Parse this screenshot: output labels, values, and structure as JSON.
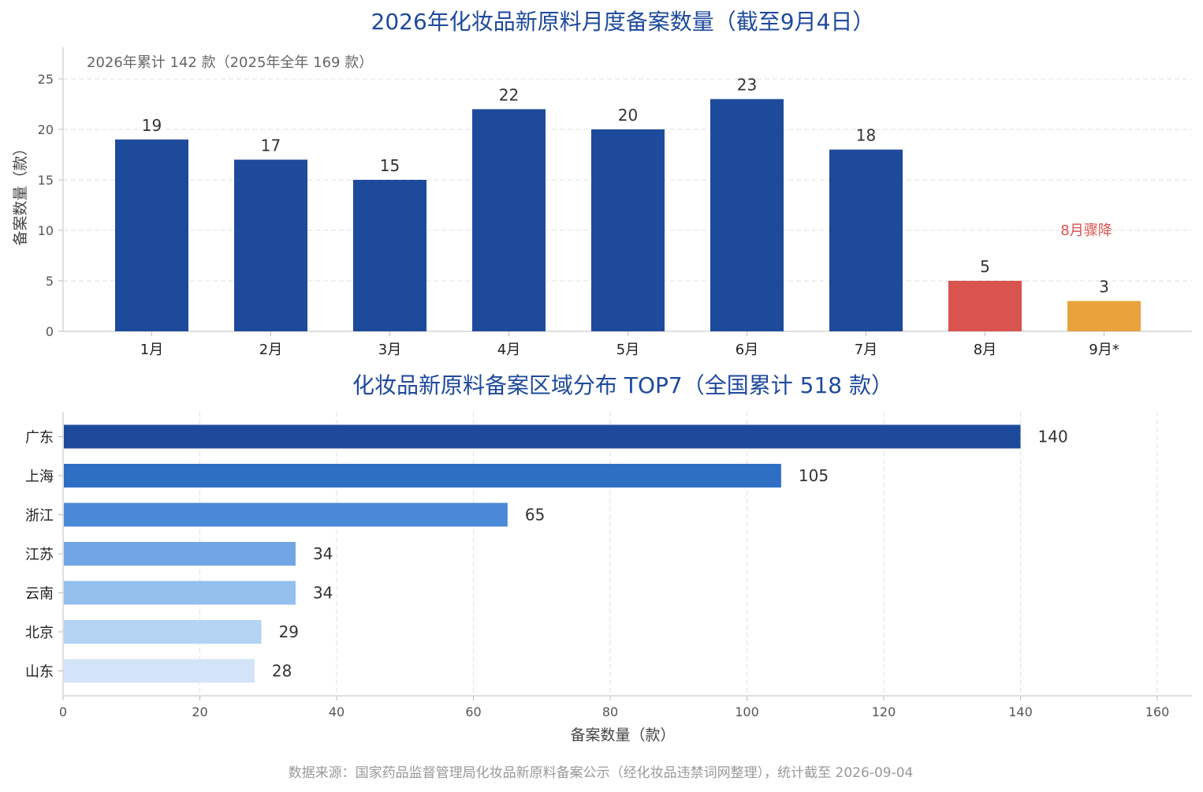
{
  "chart_data": [
    {
      "type": "bar",
      "title": "2026年化妆品新原料月度备案数量（截至9月4日）",
      "subtitle": "2026年累计 142 款（2025年全年 169 款）",
      "xlabel": "",
      "ylabel": "备案数量（款）",
      "ylim": [
        0,
        28
      ],
      "yticks": [
        "0",
        "5",
        "10",
        "15",
        "20",
        "25"
      ],
      "grid": true,
      "categories": [
        "1月",
        "2月",
        "3月",
        "4月",
        "5月",
        "6月",
        "7月",
        "8月",
        "9月*"
      ],
      "values": [
        19,
        17,
        15,
        22,
        20,
        23,
        18,
        5,
        3
      ],
      "colors": [
        "#1e4a9c",
        "#1e4a9c",
        "#1e4a9c",
        "#1e4a9c",
        "#1e4a9c",
        "#1e4a9c",
        "#1e4a9c",
        "#d9534f",
        "#e8a33d"
      ],
      "annotation": {
        "text": "8月骤降",
        "color": "#d9534f"
      }
    },
    {
      "type": "bar",
      "orientation": "horizontal",
      "title": "化妆品新原料备案区域分布 TOP7（全国累计 518 款）",
      "xlabel": "备案数量（款）",
      "ylabel": "",
      "xlim": [
        0,
        165
      ],
      "xticks": [
        "0",
        "20",
        "40",
        "60",
        "80",
        "100",
        "120",
        "140",
        "160"
      ],
      "grid": true,
      "categories": [
        "广东",
        "上海",
        "浙江",
        "江苏",
        "云南",
        "北京",
        "山东"
      ],
      "values": [
        140,
        105,
        65,
        34,
        34,
        29,
        28
      ],
      "colors": [
        "#1e4a9c",
        "#2e6fc4",
        "#4a89d8",
        "#6fa6e3",
        "#93bfec",
        "#b5d3f2",
        "#d3e4f8"
      ]
    }
  ],
  "footer": "数据来源：国家药品监督管理局化妆品新原料备案公示（经化妆品违禁词网整理），统计截至 2026-09-04"
}
